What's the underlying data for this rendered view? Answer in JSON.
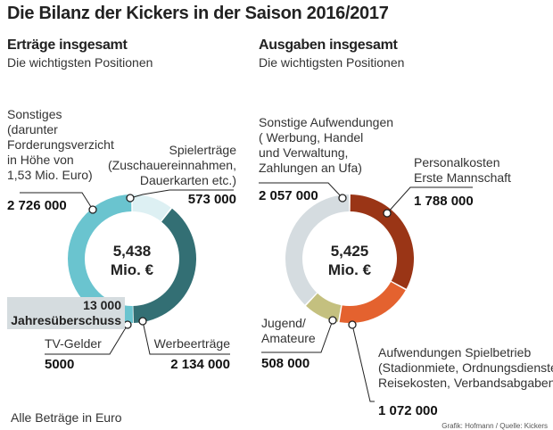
{
  "title": "Die Bilanz der Kickers in der Saison 2016/2017",
  "footer": {
    "note": "Alle Beträge in Euro",
    "credit": "Grafik: Hofmann / Quelle: Kickers"
  },
  "chart_data": [
    {
      "type": "pie",
      "title": "Erträge insgesamt",
      "subtitle": "Die wichtigsten Positionen",
      "center_value": "5,438",
      "center_unit": "Mio. €",
      "slices": [
        {
          "label": "Spielerträge (Zuschauereinnahmen, Dauerkarten etc.)",
          "value": 573000,
          "value_label": "573 000",
          "color": "#ddf0f3"
        },
        {
          "label": "Werbeerträge",
          "value": 2134000,
          "value_label": "2 134 000",
          "color": "#336f74"
        },
        {
          "label": "TV-Gelder",
          "value": 5000,
          "value_label": "5000",
          "color": "#6ac4cf"
        },
        {
          "label": "Sonstiges (darunter Forderungsverzicht in Höhe von 1,53 Mio. Euro)",
          "value": 2726000,
          "value_label": "2 726 000",
          "color": "#6ac4cf"
        }
      ],
      "annotation": {
        "value": "13 000",
        "label": "Jahresüberschuss"
      }
    },
    {
      "type": "pie",
      "title": "Ausgaben insgesamt",
      "subtitle": "Die wichtigsten Positionen",
      "center_value": "5,425",
      "center_unit": "Mio. €",
      "slices": [
        {
          "label": "Personalkosten Erste Mannschaft",
          "value": 1788000,
          "value_label": "1 788 000",
          "color": "#9a3516"
        },
        {
          "label": "Aufwendungen Spielbetrieb (Stadionmiete, Ordnungsdienste, Reisekosten, Verbandsabgaben)",
          "value": 1072000,
          "value_label": "1 072 000",
          "color": "#e4622f"
        },
        {
          "label": "Jugend/ Amateure",
          "value": 508000,
          "value_label": "508 000",
          "color": "#c4c07f"
        },
        {
          "label": "Sonstige Aufwendungen ( Werbung, Handel und Verwaltung, Zahlungen an Ufa)",
          "value": 2057000,
          "value_label": "2 057 000",
          "color": "#d5dce0"
        }
      ]
    }
  ],
  "labels": {
    "l_sonst": [
      "Sonstiges",
      "(darunter",
      "Forderungsverzicht",
      "in Höhe von",
      "1,53 Mio. Euro)"
    ],
    "l_spiel": [
      "Spielerträge",
      "(Zuschauereinnahmen,",
      "Dauerkarten etc.)"
    ],
    "l_werbe": "Werbeerträge",
    "l_tv": "TV-Gelder",
    "r_sonst": [
      "Sonstige Aufwendungen",
      "( Werbung, Handel",
      "und Verwaltung,",
      "Zahlungen an Ufa)"
    ],
    "r_pers": [
      "Personalkosten",
      "Erste Mannschaft"
    ],
    "r_jug": [
      "Jugend/",
      "Amateure"
    ],
    "r_spb": [
      "Aufwendungen Spielbetrieb",
      "(Stadionmiete, Ordnungsdienste,",
      "Reisekosten, Verbandsabgaben)"
    ]
  }
}
